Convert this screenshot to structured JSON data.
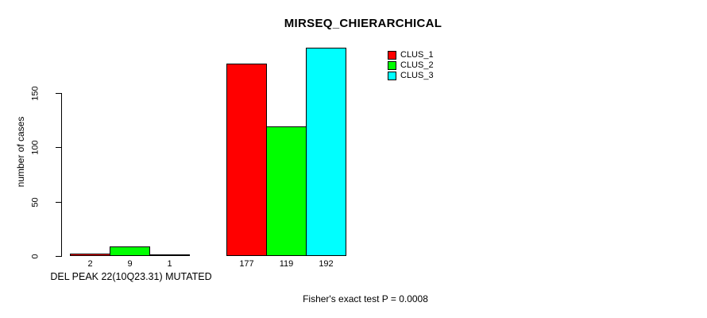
{
  "chart_data": {
    "type": "bar",
    "title": "MIRSEQ_CHIERARCHICAL",
    "ylabel": "number of cases",
    "xlabel": "DEL PEAK 22(10Q23.31) MUTATED",
    "annotation": "Fisher's exact test P = 0.0008",
    "group_labels": [
      "DEL PEAK 22(10Q23.31) MUTATED",
      ""
    ],
    "series": [
      {
        "name": "CLUS_1",
        "color": "#ff0000",
        "values": [
          2,
          177
        ]
      },
      {
        "name": "CLUS_2",
        "color": "#00ff00",
        "values": [
          9,
          119
        ]
      },
      {
        "name": "CLUS_3",
        "color": "#00ffff",
        "values": [
          1,
          192
        ]
      }
    ],
    "bar_value_labels": [
      [
        2,
        9,
        1
      ],
      [
        177,
        119,
        192
      ]
    ],
    "yticks": [
      0,
      50,
      100,
      150
    ],
    "ylim": [
      0,
      200
    ],
    "grid": false,
    "legend_position": "right",
    "colors": {
      "background": "#ffffff",
      "axis": "#000000",
      "text": "#000000"
    }
  }
}
